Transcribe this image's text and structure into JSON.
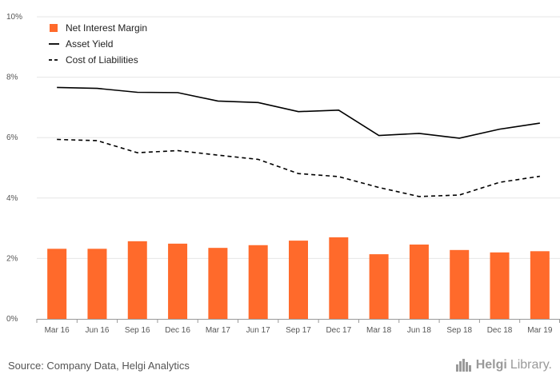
{
  "chart_data": {
    "type": "bar",
    "title": "",
    "xlabel": "",
    "ylabel": "",
    "categories": [
      "Mar 16",
      "Jun 16",
      "Sep 16",
      "Dec 16",
      "Mar 17",
      "Jun 17",
      "Sep 17",
      "Dec 17",
      "Mar 18",
      "Jun 18",
      "Sep 18",
      "Dec 18",
      "Mar 19"
    ],
    "y_ticks": [
      "0%",
      "2%",
      "4%",
      "6%",
      "8%",
      "10%"
    ],
    "ylim": [
      0,
      10
    ],
    "grid": true,
    "legend_position": "top-left",
    "series": [
      {
        "name": "Net Interest Margin",
        "kind": "bar",
        "color": "#ff6a2b",
        "values": [
          2.32,
          2.32,
          2.57,
          2.49,
          2.35,
          2.44,
          2.59,
          2.7,
          2.14,
          2.46,
          2.28,
          2.2,
          2.24
        ]
      },
      {
        "name": "Asset Yield",
        "kind": "line",
        "style": "solid",
        "color": "#000000",
        "values": [
          7.66,
          7.63,
          7.5,
          7.49,
          7.21,
          7.16,
          6.86,
          6.91,
          6.07,
          6.14,
          5.98,
          6.28,
          6.48
        ]
      },
      {
        "name": "Cost of Liabilities",
        "kind": "line",
        "style": "dashed",
        "color": "#000000",
        "values": [
          5.94,
          5.9,
          5.5,
          5.57,
          5.42,
          5.28,
          4.81,
          4.71,
          4.35,
          4.05,
          4.1,
          4.52,
          4.72
        ]
      }
    ]
  },
  "footer": {
    "source": "Source: Company Data, Helgi Analytics",
    "logo_text": "Helgi",
    "logo_text_2": "Library."
  },
  "icons": {
    "logo": "helgi-library-logo-icon"
  }
}
